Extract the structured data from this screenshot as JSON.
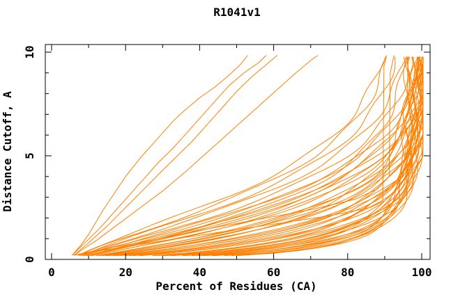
{
  "chart_data": {
    "type": "line",
    "title": "R1041v1",
    "xlabel": "Percent of Residues (CA)",
    "ylabel": "Distance Cutoff, A",
    "xlim": [
      0,
      100
    ],
    "ylim": [
      0,
      10
    ],
    "grid": false,
    "legend": "none",
    "frame": "box-with-inward-ticks",
    "series_color": "#ff7f00",
    "axis_color": "#000000",
    "x_major_ticks": [
      0,
      20,
      40,
      60,
      80,
      100
    ],
    "x_minor_ticks": [
      10,
      30,
      50,
      70,
      90
    ],
    "y_major_ticks": [
      0,
      5,
      10
    ],
    "y_minor_ticks": [
      1,
      2,
      3,
      4,
      6,
      7,
      8,
      9
    ],
    "cutoff_start": 0.18,
    "cutoff_end": 9.85,
    "cutoff_step": 0.12,
    "pct_clamp": 100.3,
    "wiggle": {
      "amp": 0.8,
      "freq": 2.1
    },
    "curve_model": "pct(c) = p0 + (A - p0) * (1 - exp(-(c/c0)^b)), clamped to pct_clamp",
    "curve_params": [
      [
        6.0,
        97,
        0.38,
        0.62
      ],
      [
        6.5,
        98,
        0.42,
        0.65
      ],
      [
        5.8,
        96,
        0.46,
        0.63
      ],
      [
        7.0,
        99,
        0.5,
        0.68
      ],
      [
        6.2,
        97,
        0.55,
        0.66
      ],
      [
        6.8,
        100,
        0.6,
        0.7
      ],
      [
        5.9,
        98,
        0.65,
        0.67
      ],
      [
        6.4,
        101,
        0.7,
        0.72
      ],
      [
        7.2,
        99,
        0.76,
        0.7
      ],
      [
        6.1,
        102,
        0.82,
        0.74
      ],
      [
        6.6,
        100,
        0.88,
        0.72
      ],
      [
        5.7,
        103,
        0.94,
        0.76
      ],
      [
        6.9,
        101,
        1.0,
        0.78
      ],
      [
        6.3,
        99,
        1.06,
        0.76
      ],
      [
        7.1,
        104,
        1.12,
        0.8
      ],
      [
        6.0,
        100,
        1.18,
        0.82
      ],
      [
        6.5,
        102,
        1.25,
        0.84
      ],
      [
        5.8,
        104,
        1.32,
        0.86
      ],
      [
        6.7,
        101,
        1.4,
        0.88
      ],
      [
        6.2,
        103,
        1.48,
        0.9
      ],
      [
        6.8,
        100,
        1.56,
        0.92
      ],
      [
        5.9,
        104,
        1.64,
        0.94
      ],
      [
        6.4,
        102,
        1.72,
        0.96
      ],
      [
        7.0,
        105,
        1.8,
        0.98
      ],
      [
        6.1,
        101,
        1.9,
        1.0
      ],
      [
        6.6,
        103,
        2.0,
        1.02
      ],
      [
        5.7,
        100,
        2.1,
        1.04
      ],
      [
        6.9,
        104,
        2.2,
        1.06
      ],
      [
        6.3,
        102,
        2.32,
        1.08
      ],
      [
        7.2,
        105,
        2.44,
        1.1
      ],
      [
        6.0,
        101,
        2.56,
        1.12
      ],
      [
        6.5,
        103,
        2.68,
        1.14
      ],
      [
        5.8,
        100,
        2.8,
        1.16
      ],
      [
        6.7,
        104,
        2.92,
        1.18
      ],
      [
        6.2,
        102,
        3.05,
        1.2
      ],
      [
        6.8,
        105,
        3.18,
        1.22
      ],
      [
        5.9,
        101,
        3.32,
        1.24
      ],
      [
        6.4,
        103,
        3.46,
        1.26
      ],
      [
        7.0,
        100,
        3.6,
        1.28
      ],
      [
        6.1,
        98,
        3.74,
        1.3
      ],
      [
        6.6,
        96,
        3.88,
        1.32
      ],
      [
        6.3,
        94,
        4.02,
        1.34
      ],
      [
        5.8,
        93,
        4.16,
        1.36
      ],
      [
        6.2,
        96,
        0.35,
        0.6
      ],
      [
        6.7,
        99,
        0.58,
        0.64
      ],
      [
        6.0,
        101,
        0.9,
        0.75
      ],
      [
        6.4,
        98,
        1.9,
        0.95
      ],
      [
        6.9,
        97,
        3.0,
        1.2
      ]
    ],
    "extra_curves": [
      [
        [
          5.5,
          0.2
        ],
        [
          8,
          0.7
        ],
        [
          10,
          1.2
        ],
        [
          12,
          1.8
        ],
        [
          14,
          2.4
        ],
        [
          17,
          3.2
        ],
        [
          20,
          4.0
        ],
        [
          24,
          4.9
        ],
        [
          27,
          5.5
        ],
        [
          30,
          6.1
        ],
        [
          33,
          6.7
        ],
        [
          36,
          7.2
        ],
        [
          40,
          7.8
        ],
        [
          44,
          8.3
        ],
        [
          48,
          8.9
        ],
        [
          51,
          9.4
        ],
        [
          53,
          9.85
        ]
      ],
      [
        [
          5.5,
          0.2
        ],
        [
          9,
          0.8
        ],
        [
          13,
          1.5
        ],
        [
          17,
          2.3
        ],
        [
          21,
          3.1
        ],
        [
          25,
          3.9
        ],
        [
          29,
          4.7
        ],
        [
          33,
          5.4
        ],
        [
          36,
          6.0
        ],
        [
          39,
          6.6
        ],
        [
          42,
          7.2
        ],
        [
          45,
          7.8
        ],
        [
          48,
          8.4
        ],
        [
          52,
          9.0
        ],
        [
          56,
          9.5
        ],
        [
          58,
          9.85
        ]
      ],
      [
        [
          6,
          0.2
        ],
        [
          10,
          0.8
        ],
        [
          15,
          1.6
        ],
        [
          20,
          2.5
        ],
        [
          25,
          3.4
        ],
        [
          30,
          4.3
        ],
        [
          34,
          5.0
        ],
        [
          38,
          5.7
        ],
        [
          41,
          6.3
        ],
        [
          44,
          6.9
        ],
        [
          47,
          7.5
        ],
        [
          50,
          8.1
        ],
        [
          54,
          8.8
        ],
        [
          58,
          9.4
        ],
        [
          61,
          9.85
        ]
      ],
      [
        [
          6,
          0.2
        ],
        [
          12,
          0.9
        ],
        [
          18,
          1.7
        ],
        [
          24,
          2.5
        ],
        [
          30,
          3.3
        ],
        [
          36,
          4.2
        ],
        [
          41,
          5.0
        ],
        [
          46,
          5.8
        ],
        [
          51,
          6.6
        ],
        [
          56,
          7.4
        ],
        [
          61,
          8.2
        ],
        [
          66,
          9.0
        ],
        [
          70,
          9.6
        ],
        [
          72,
          9.85
        ]
      ],
      [
        [
          6,
          0.2
        ],
        [
          16,
          0.5
        ],
        [
          30,
          0.9
        ],
        [
          45,
          1.3
        ],
        [
          60,
          1.7
        ],
        [
          75,
          2.1
        ],
        [
          86,
          2.5
        ],
        [
          89.5,
          2.8
        ],
        [
          89.8,
          9.3
        ],
        [
          90.5,
          9.85
        ]
      ],
      [
        [
          6,
          0.2
        ],
        [
          14,
          0.5
        ],
        [
          26,
          0.9
        ],
        [
          40,
          1.4
        ],
        [
          55,
          1.9
        ],
        [
          70,
          2.4
        ],
        [
          82,
          2.9
        ],
        [
          88,
          3.4
        ],
        [
          91.2,
          4.0
        ],
        [
          91.5,
          9.0
        ],
        [
          92.5,
          9.85
        ]
      ]
    ]
  }
}
